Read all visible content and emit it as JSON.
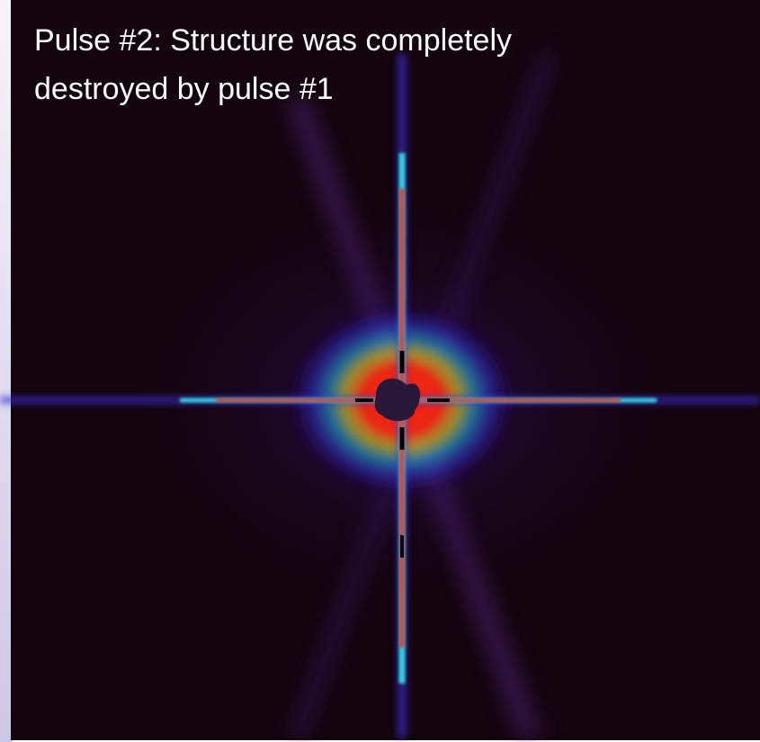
{
  "caption": [
    "Pulse #2: Structure was completely",
    "destroyed by pulse #1"
  ]
}
